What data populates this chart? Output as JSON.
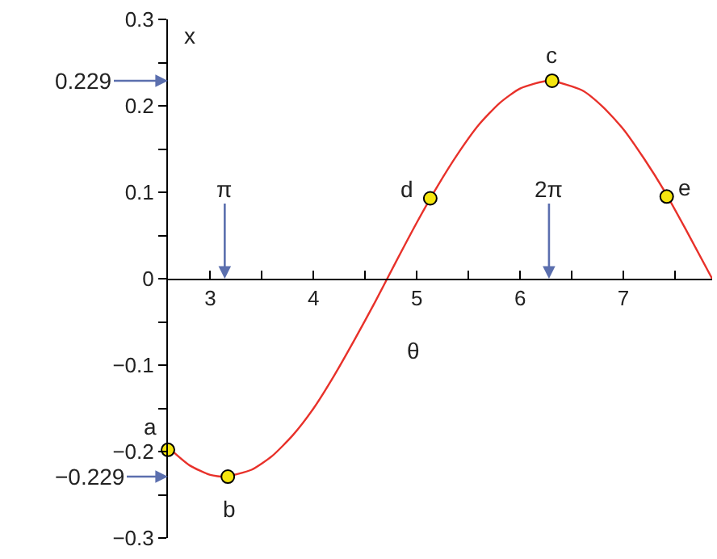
{
  "chart_data": {
    "type": "line",
    "xlabel": "θ",
    "ylabel": "x",
    "series": [
      {
        "color": "#e8312a",
        "x": [
          2.59,
          2.8,
          3.0,
          3.14,
          3.4,
          3.6,
          3.8,
          4.0,
          4.2,
          4.4,
          4.6,
          4.8,
          5.0,
          5.2,
          5.4,
          5.6,
          5.8,
          6.0,
          6.28,
          6.6,
          6.8,
          7.0,
          7.2,
          7.4,
          7.6,
          7.86
        ],
        "values": [
          -0.195,
          -0.216,
          -0.227,
          -0.229,
          -0.221,
          -0.205,
          -0.181,
          -0.15,
          -0.112,
          -0.07,
          -0.026,
          0.02,
          0.065,
          0.107,
          0.145,
          0.178,
          0.203,
          0.22,
          0.229,
          0.218,
          0.199,
          0.173,
          0.139,
          0.101,
          0.058,
          0.0
        ]
      },
      {
        "type": "scatter",
        "color": "#f5e50f",
        "marker": "circle",
        "x": [
          2.59,
          3.17,
          6.31,
          5.13,
          7.42
        ],
        "values": [
          -0.198,
          -0.229,
          0.229,
          0.093,
          0.095
        ]
      }
    ],
    "xlim": [
      2.59,
      7.86
    ],
    "ylim": [
      -0.3,
      0.3
    ],
    "xticks": [
      3,
      4,
      5,
      6,
      7,
      {
        "value": 3.5,
        "label": null
      },
      {
        "value": 4.5,
        "label": null
      },
      {
        "value": 5.5,
        "label": null
      },
      {
        "value": 6.5,
        "label": null
      },
      {
        "value": 7.5,
        "label": null
      }
    ],
    "yticks": [
      {
        "value": -0.3,
        "label": "−0.3"
      },
      {
        "value": -0.2,
        "label": "−0.2"
      },
      {
        "value": -0.1,
        "label": "−0.1"
      },
      0,
      0.1,
      0.2,
      0.3,
      {
        "value": -0.25,
        "label": null
      },
      {
        "value": -0.15,
        "label": null
      },
      {
        "value": -0.05,
        "label": null
      },
      {
        "value": 0.05,
        "label": null
      },
      {
        "value": 0.15,
        "label": null
      },
      {
        "value": 0.25,
        "label": null
      }
    ],
    "annotations": [
      {
        "text": "a",
        "x": 2.59,
        "y": -0.198
      },
      {
        "text": "b",
        "x": 3.17,
        "y": -0.229
      },
      {
        "text": "c",
        "x": 6.31,
        "y": 0.229
      },
      {
        "text": "d",
        "x": 5.13,
        "y": 0.093
      },
      {
        "text": "e",
        "x": 7.42,
        "y": 0.095
      }
    ],
    "ref_lines": [
      {
        "axis": "x",
        "value": 3.14,
        "label": "π",
        "color": "#5b6fae"
      },
      {
        "axis": "x",
        "value": 6.28,
        "label": "2π",
        "color": "#5b6fae"
      },
      {
        "axis": "y",
        "value": 0.229,
        "label": "0.229",
        "color": "#5b6fae"
      },
      {
        "axis": "y",
        "value": -0.229,
        "label": "−0.229",
        "color": "#5b6fae"
      }
    ],
    "tick_labels": true
  }
}
